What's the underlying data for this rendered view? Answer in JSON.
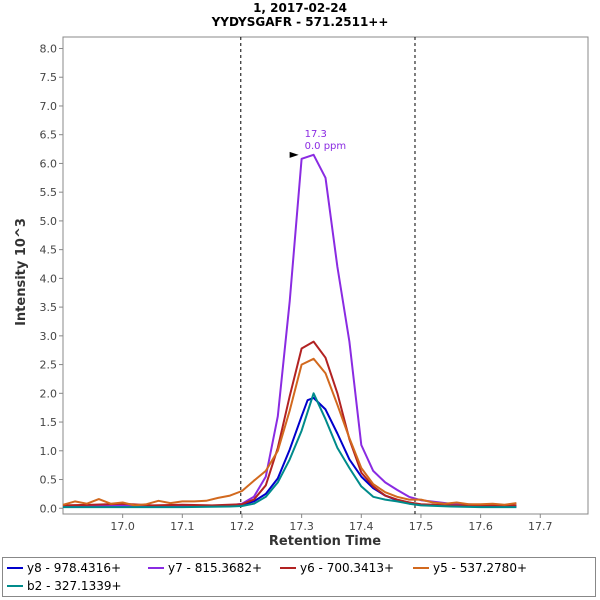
{
  "chart_data": {
    "type": "line",
    "title": "1, 2017-02-24",
    "subtitle": "YYDYSGAFR - 571.2511++",
    "xlabel": "Retention Time",
    "ylabel": "Intensity 10^3",
    "xlim": [
      16.9,
      17.78
    ],
    "ylim": [
      -0.1,
      8.2
    ],
    "xticks": [
      "17.0",
      "17.1",
      "17.2",
      "17.3",
      "17.4",
      "17.5",
      "17.6",
      "17.7"
    ],
    "xtick_values": [
      17.0,
      17.1,
      17.2,
      17.3,
      17.4,
      17.5,
      17.6,
      17.7
    ],
    "yticks": [
      "0.0",
      "0.5",
      "1.0",
      "1.5",
      "2.0",
      "2.5",
      "3.0",
      "3.5",
      "4.0",
      "4.5",
      "5.0",
      "5.5",
      "6.0",
      "6.5",
      "7.0",
      "7.5",
      "8.0"
    ],
    "ytick_values": [
      0.0,
      0.5,
      1.0,
      1.5,
      2.0,
      2.5,
      3.0,
      3.5,
      4.0,
      4.5,
      5.0,
      5.5,
      6.0,
      6.5,
      7.0,
      7.5,
      8.0
    ],
    "grid": false,
    "vertical_lines": [
      17.198,
      17.49
    ],
    "annotation": {
      "x": 17.3,
      "y": 6.15,
      "label": "17.3",
      "sublabel": "0.0 ppm",
      "color": "#8a2be2"
    },
    "series": [
      {
        "name": "y8 - 978.4316+",
        "color": "#0000cc",
        "x": [
          16.9,
          17.0,
          17.1,
          17.18,
          17.2,
          17.22,
          17.24,
          17.26,
          17.28,
          17.3,
          17.31,
          17.32,
          17.34,
          17.36,
          17.38,
          17.4,
          17.42,
          17.44,
          17.46,
          17.48,
          17.5,
          17.55,
          17.6,
          17.66
        ],
        "y": [
          0.03,
          0.03,
          0.03,
          0.04,
          0.06,
          0.12,
          0.25,
          0.52,
          1.02,
          1.6,
          1.88,
          1.92,
          1.72,
          1.3,
          0.85,
          0.55,
          0.35,
          0.22,
          0.14,
          0.1,
          0.06,
          0.04,
          0.03,
          0.03
        ]
      },
      {
        "name": "y7 - 815.3682+",
        "color": "#8a2be2",
        "x": [
          16.9,
          17.0,
          17.1,
          17.18,
          17.2,
          17.22,
          17.24,
          17.26,
          17.28,
          17.3,
          17.32,
          17.34,
          17.36,
          17.38,
          17.4,
          17.42,
          17.44,
          17.46,
          17.48,
          17.5,
          17.55,
          17.6,
          17.66
        ],
        "y": [
          0.04,
          0.05,
          0.04,
          0.05,
          0.08,
          0.2,
          0.55,
          1.6,
          3.6,
          6.08,
          6.15,
          5.75,
          4.2,
          2.9,
          1.1,
          0.65,
          0.45,
          0.32,
          0.2,
          0.14,
          0.08,
          0.06,
          0.05
        ]
      },
      {
        "name": "y6 - 700.3413+",
        "color": "#b22222",
        "x": [
          16.9,
          16.95,
          17.0,
          17.05,
          17.1,
          17.15,
          17.2,
          17.22,
          17.24,
          17.26,
          17.28,
          17.3,
          17.32,
          17.34,
          17.36,
          17.38,
          17.4,
          17.42,
          17.44,
          17.46,
          17.48,
          17.5,
          17.55,
          17.6,
          17.66
        ],
        "y": [
          0.05,
          0.06,
          0.08,
          0.05,
          0.06,
          0.05,
          0.07,
          0.15,
          0.4,
          1.05,
          1.95,
          2.78,
          2.9,
          2.62,
          2.0,
          1.2,
          0.62,
          0.38,
          0.22,
          0.15,
          0.1,
          0.07,
          0.05,
          0.05,
          0.05
        ]
      },
      {
        "name": "y5 - 537.2780+",
        "color": "#d2691e",
        "x": [
          16.9,
          16.92,
          16.94,
          16.96,
          16.98,
          17.0,
          17.02,
          17.04,
          17.06,
          17.08,
          17.1,
          17.12,
          17.14,
          17.16,
          17.18,
          17.2,
          17.22,
          17.24,
          17.26,
          17.28,
          17.3,
          17.32,
          17.34,
          17.36,
          17.38,
          17.4,
          17.42,
          17.44,
          17.46,
          17.48,
          17.5,
          17.52,
          17.54,
          17.56,
          17.58,
          17.6,
          17.62,
          17.64,
          17.66
        ],
        "y": [
          0.06,
          0.12,
          0.08,
          0.16,
          0.08,
          0.1,
          0.05,
          0.07,
          0.13,
          0.09,
          0.12,
          0.12,
          0.13,
          0.18,
          0.22,
          0.3,
          0.48,
          0.65,
          1.0,
          1.7,
          2.5,
          2.6,
          2.35,
          1.8,
          1.22,
          0.7,
          0.42,
          0.28,
          0.2,
          0.15,
          0.15,
          0.1,
          0.08,
          0.1,
          0.07,
          0.07,
          0.08,
          0.06,
          0.09
        ]
      },
      {
        "name": "b2 - 327.1339+",
        "color": "#008b8b",
        "x": [
          16.9,
          17.0,
          17.1,
          17.18,
          17.2,
          17.22,
          17.24,
          17.26,
          17.28,
          17.3,
          17.32,
          17.34,
          17.36,
          17.38,
          17.4,
          17.42,
          17.44,
          17.46,
          17.48,
          17.5,
          17.55,
          17.6,
          17.66
        ],
        "y": [
          0.02,
          0.02,
          0.02,
          0.03,
          0.04,
          0.08,
          0.2,
          0.45,
          0.85,
          1.35,
          2.0,
          1.55,
          1.05,
          0.7,
          0.38,
          0.2,
          0.15,
          0.12,
          0.08,
          0.05,
          0.03,
          0.02,
          0.02
        ]
      }
    ]
  }
}
